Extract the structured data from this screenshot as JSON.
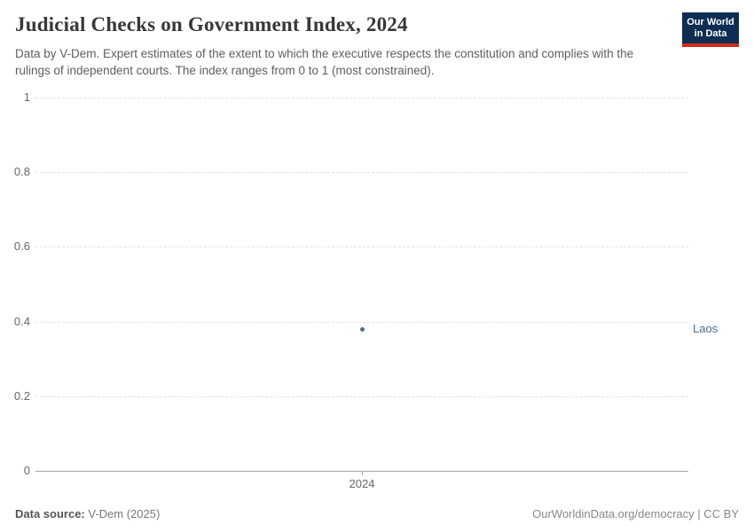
{
  "header": {
    "title": "Judicial Checks on Government Index, 2024",
    "subtitle": "Data by V-Dem. Expert estimates of the extent to which the executive respects the constitution and complies with the rulings of independent courts. The index ranges from 0 to 1 (most constrained).",
    "logo": {
      "line1": "Our World",
      "line2": "in Data",
      "bg_color": "#0e2d52",
      "accent_color": "#d02a1a"
    }
  },
  "chart_data": {
    "type": "scatter",
    "title": "Judicial Checks on Government Index, 2024",
    "x": [
      2024
    ],
    "xticks": [
      "2024"
    ],
    "series": [
      {
        "name": "Laos",
        "values": [
          0.38
        ],
        "color": "#4c6a9c"
      }
    ],
    "yticks": [
      0,
      0.2,
      0.4,
      0.6,
      0.8,
      1
    ],
    "ylim": [
      0,
      1
    ],
    "xlabel": "",
    "ylabel": "",
    "grid": "horizontal-dashed",
    "gridline_color": "#e2e2e2",
    "axis_line_color": "#a5a5a5",
    "point_label_position": "right-edge"
  },
  "footer": {
    "source_label": "Data source:",
    "source_value": "V-Dem (2025)",
    "credit": "OurWorldinData.org/democracy | CC BY"
  }
}
